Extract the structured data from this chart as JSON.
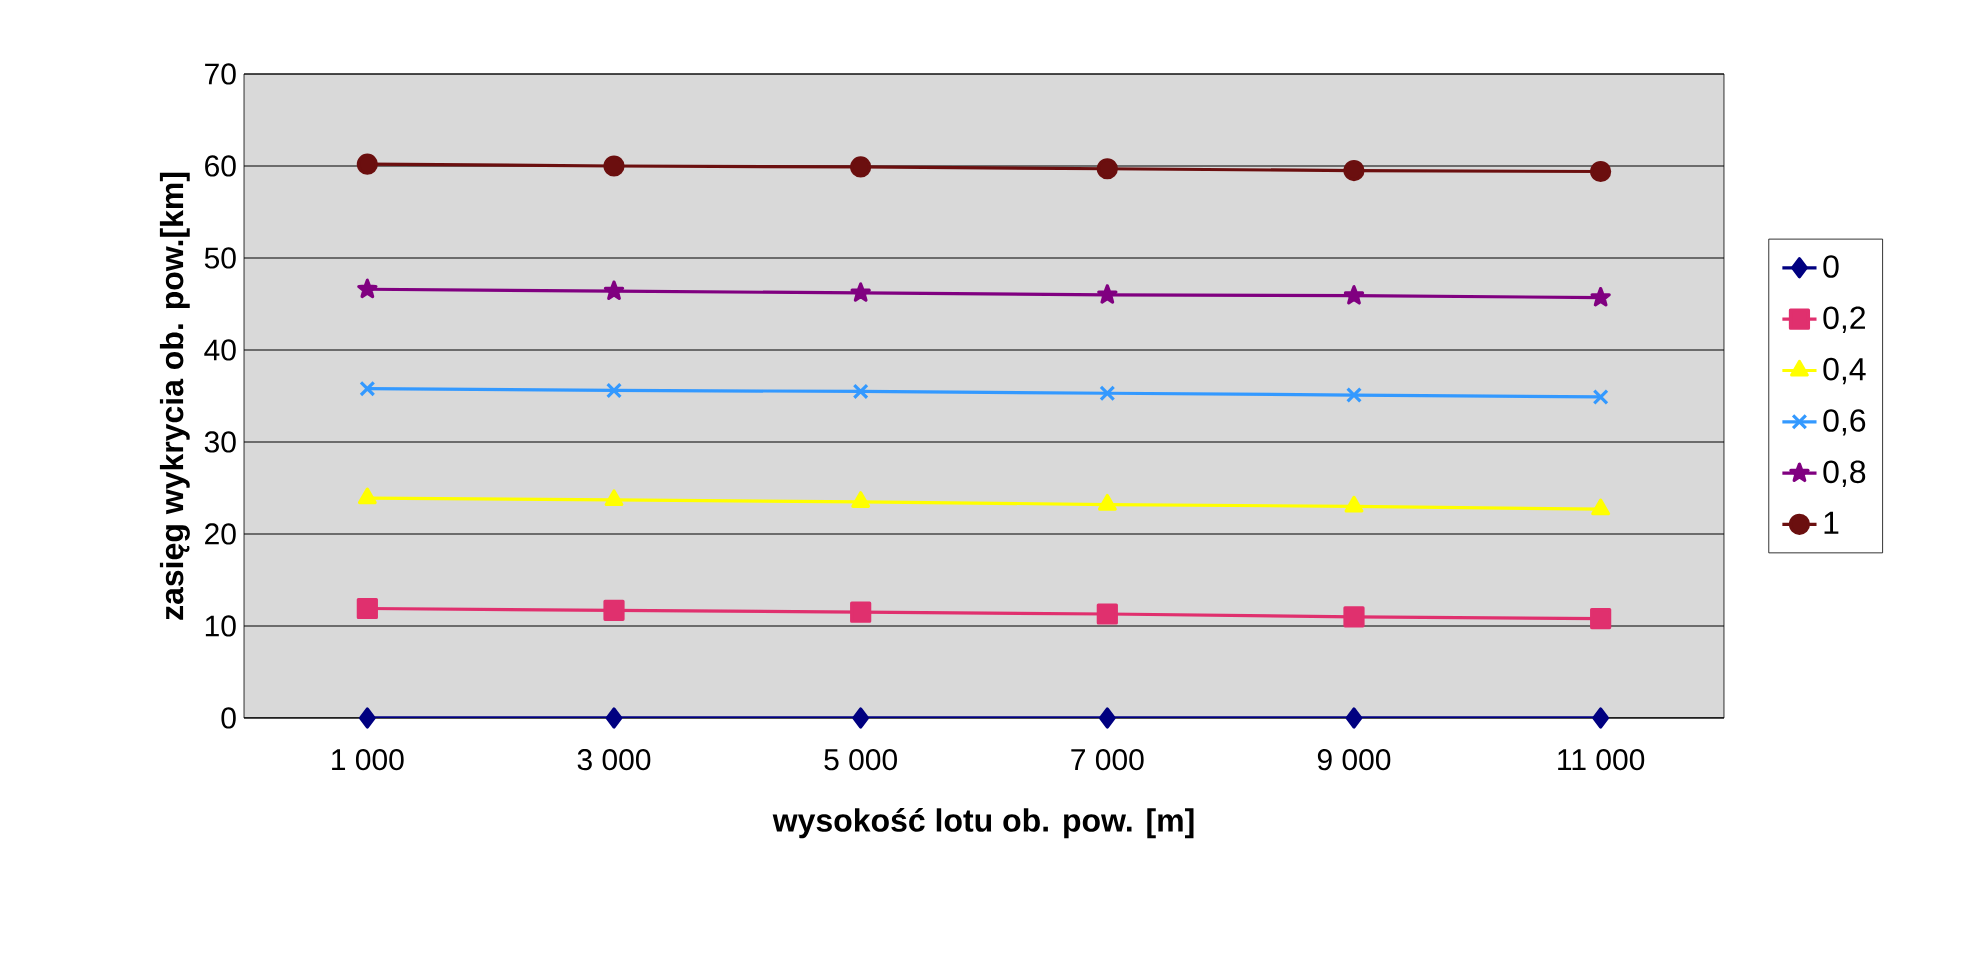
{
  "chart_data": {
    "type": "line",
    "xlabel": "wysokość lotu ob. pow. [m]",
    "ylabel": "zasięg wykrycia ob. pow.[km]",
    "categories": [
      "1 000",
      "3 000",
      "5 000",
      "7 000",
      "9 000",
      "11 000"
    ],
    "ylim": [
      0,
      70
    ],
    "yticks": [
      0,
      10,
      20,
      30,
      40,
      50,
      60,
      70
    ],
    "grid": "y",
    "legend": "right",
    "series": [
      {
        "name": "0",
        "color": "#000080",
        "marker": "diamond",
        "values": [
          0,
          0,
          0,
          0,
          0,
          0
        ]
      },
      {
        "name": "0,2",
        "color": "#e0306e",
        "marker": "square",
        "values": [
          11.9,
          11.7,
          11.5,
          11.3,
          11.0,
          10.8
        ]
      },
      {
        "name": "0,4",
        "color": "#ffff00",
        "marker": "triangle",
        "values": [
          23.9,
          23.7,
          23.5,
          23.2,
          23.0,
          22.7
        ]
      },
      {
        "name": "0,6",
        "color": "#3399ff",
        "marker": "cross",
        "values": [
          35.8,
          35.6,
          35.5,
          35.3,
          35.1,
          34.9
        ]
      },
      {
        "name": "0,8",
        "color": "#800080",
        "marker": "star",
        "values": [
          46.6,
          46.4,
          46.2,
          46.0,
          45.9,
          45.7
        ]
      },
      {
        "name": "1",
        "color": "#6b0f0f",
        "marker": "circle",
        "values": [
          60.2,
          60.0,
          59.9,
          59.7,
          59.5,
          59.4
        ]
      }
    ]
  }
}
